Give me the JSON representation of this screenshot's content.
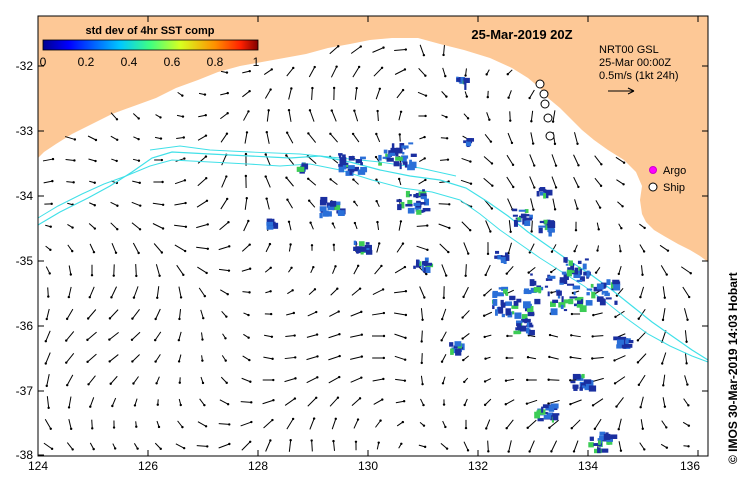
{
  "title": "25-Mar-2019 20Z",
  "colorbar": {
    "label": "std dev of 4hr SST comp",
    "ticks": [
      "0",
      "0.2",
      "0.4",
      "0.6",
      "0.8",
      "1"
    ]
  },
  "info_box": {
    "line1": "NRT00 GSL",
    "line2": "25-Mar 00:00Z",
    "line3": "0.5m/s (1kt 24h)"
  },
  "legend": {
    "argo": "Argo",
    "ship": "Ship"
  },
  "credit": "© IMOS 30-Mar-2019 14:03 Hobart",
  "axes": {
    "lon_ticks": [
      "124",
      "126",
      "128",
      "130",
      "132",
      "134",
      "136"
    ],
    "lat_ticks": [
      "-32",
      "-33",
      "-34",
      "-35",
      "-36",
      "-37",
      "-38"
    ]
  },
  "colors": {
    "land": "#fdc896",
    "contour": "#40e0e8",
    "frame": "#000000",
    "argo": "#ff00ff",
    "patch_dark": "#1a2fa0",
    "patch_mid": "#2a6fd8",
    "patch_green": "#3ccc55"
  }
}
